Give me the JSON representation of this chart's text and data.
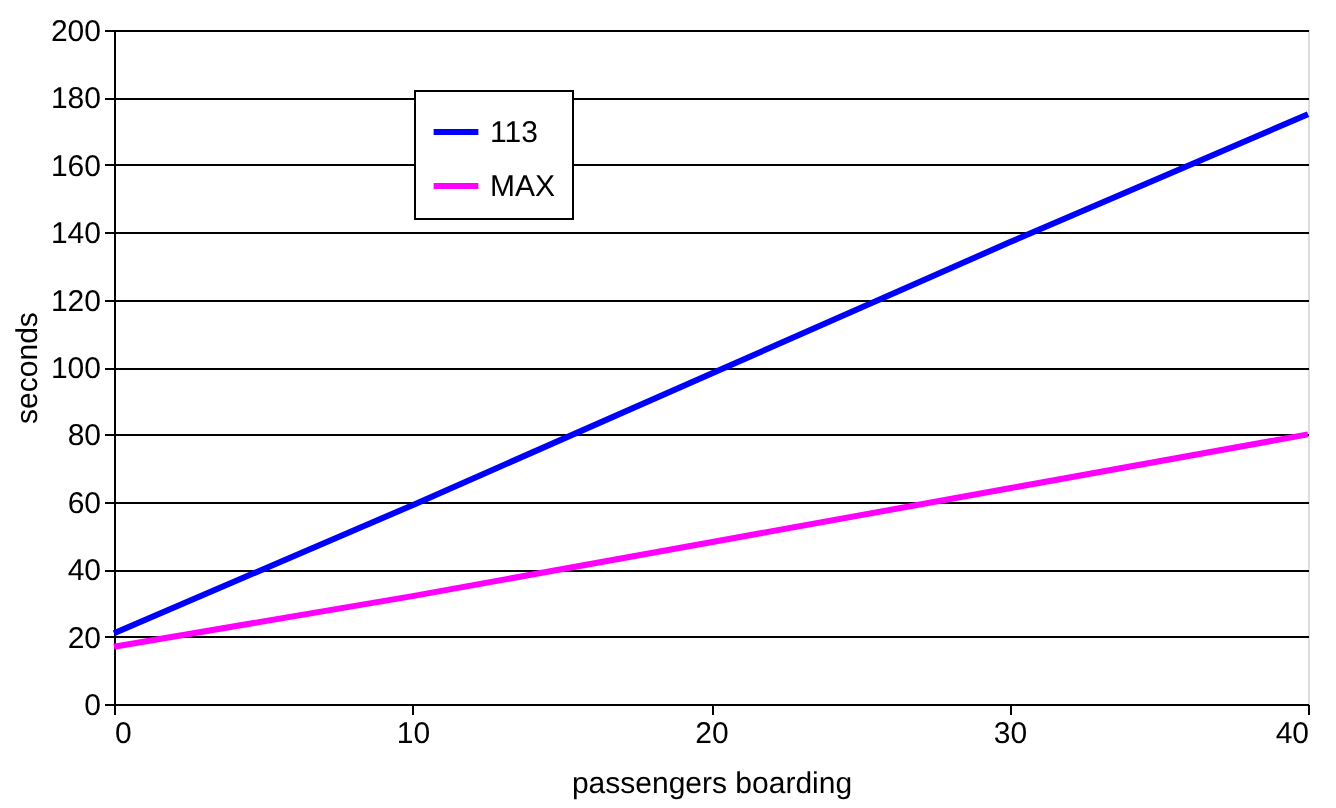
{
  "chart_data": {
    "type": "line",
    "xlabel": "passengers boarding",
    "ylabel": "seconds",
    "x": [
      0,
      10,
      20,
      30,
      40
    ],
    "series": [
      {
        "name": "113",
        "color": "#0000ff",
        "values": [
          21,
          59,
          98,
          137,
          175
        ]
      },
      {
        "name": "MAX",
        "color": "#ff00ff",
        "values": [
          17,
          32,
          48,
          64,
          80
        ]
      }
    ],
    "xlim": [
      0,
      40
    ],
    "xticks": [
      0,
      10,
      20,
      30,
      40
    ],
    "ylim": [
      0,
      200
    ],
    "yticks": [
      0,
      20,
      40,
      60,
      80,
      100,
      120,
      140,
      160,
      180,
      200
    ],
    "grid": "y",
    "legend": "top left",
    "marker": "none",
    "line_style": "solid"
  }
}
